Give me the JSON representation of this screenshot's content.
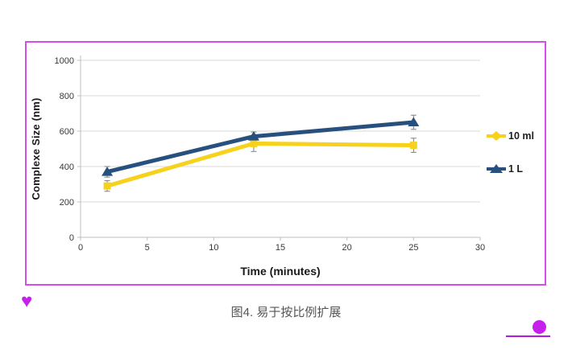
{
  "figure": {
    "border_color": "#d34fe8",
    "caption": "图4. 易于按比例扩展"
  },
  "chart_data": {
    "type": "line",
    "title": "",
    "xlabel": "Time (minutes)",
    "ylabel": "Complexe Size (nm)",
    "xlim": [
      0,
      30
    ],
    "ylim": [
      0,
      1000
    ],
    "xticks": [
      0,
      5,
      10,
      15,
      20,
      25,
      30
    ],
    "yticks": [
      0,
      200,
      400,
      600,
      800,
      1000
    ],
    "grid": true,
    "legend_position": "right",
    "x": [
      2,
      13,
      25
    ],
    "series": [
      {
        "name": "10 ml",
        "color": "#f6d21d",
        "marker": "square",
        "values": [
          290,
          530,
          520
        ],
        "errors": [
          30,
          45,
          40
        ]
      },
      {
        "name": "1 L",
        "color": "#27507e",
        "marker": "triangle",
        "values": [
          370,
          570,
          650
        ],
        "errors": [
          30,
          25,
          40
        ]
      }
    ],
    "error_bar_color": "#808080",
    "gridline_color": "#d9d9d9",
    "axis_line_color": "#bfbfbf",
    "tick_label_color": "#383838"
  },
  "decorations": {
    "heart_icon": "♥",
    "heart_color": "#c621ea",
    "dot_color": "#c621ea",
    "line_color": "#b31ae0"
  }
}
